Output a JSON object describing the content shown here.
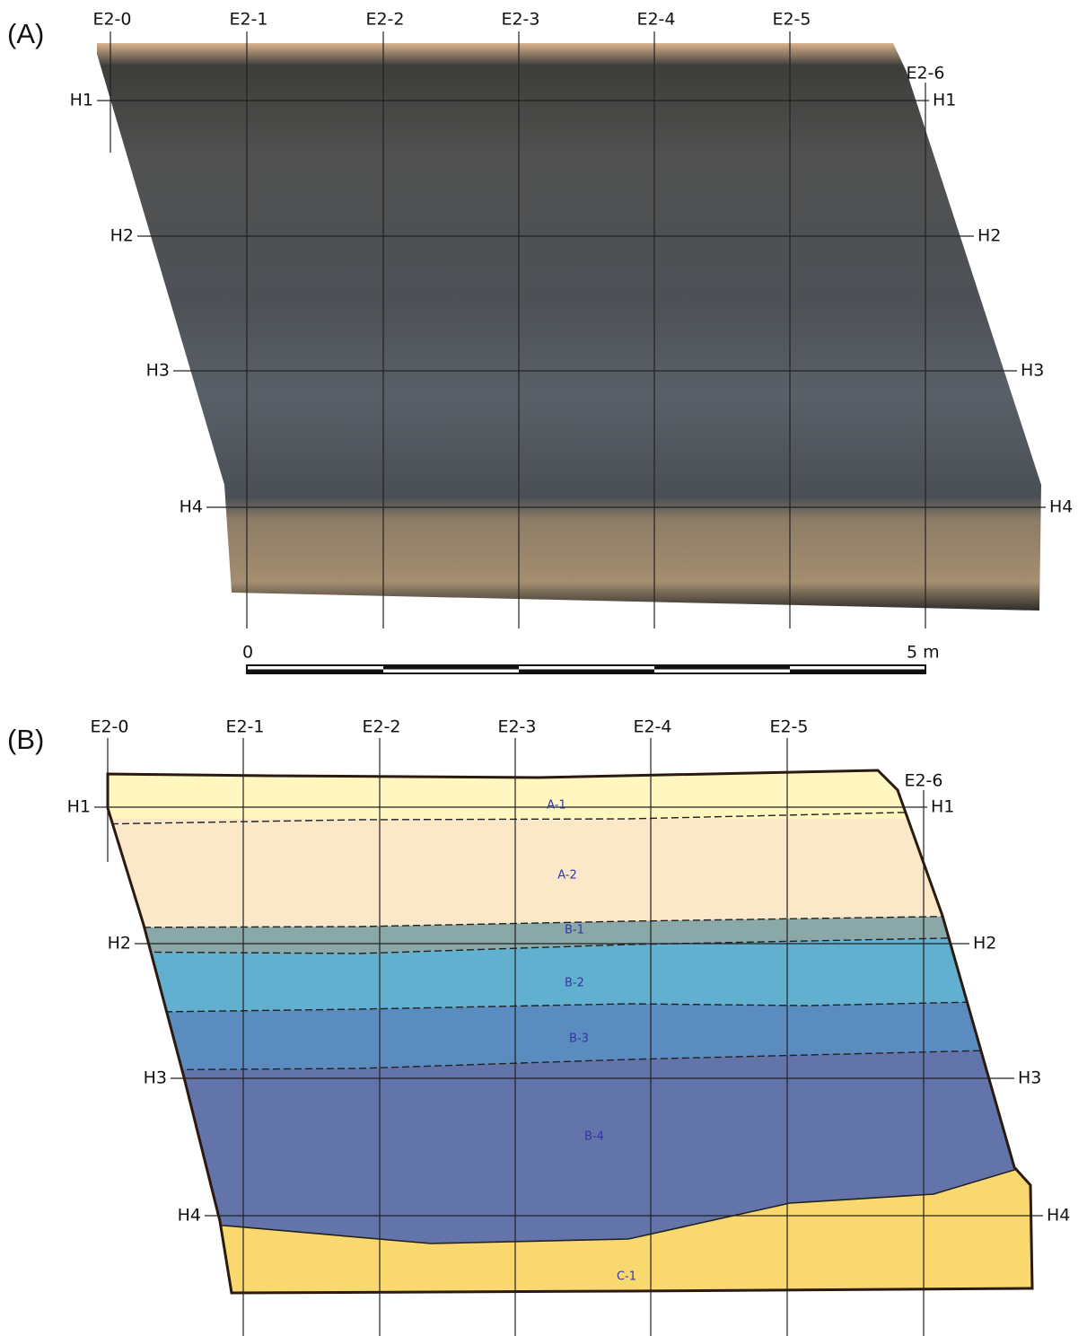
{
  "panels": [
    {
      "label": "(A)",
      "columns": [
        "E2-0",
        "E2-1",
        "E2-2",
        "E2-3",
        "E2-4",
        "E2-5",
        "E2-6"
      ],
      "rows": [
        "H1",
        "H2",
        "H3",
        "H4"
      ],
      "scale": {
        "start": "0",
        "end": "5 m"
      }
    },
    {
      "label": "(B)",
      "columns": [
        "E2-0",
        "E2-1",
        "E2-2",
        "E2-3",
        "E2-4",
        "E2-5",
        "E2-6"
      ],
      "rows": [
        "H1",
        "H2",
        "H3",
        "H4"
      ],
      "layers": [
        "A-1",
        "A-2",
        "B-1",
        "B-2",
        "B-3",
        "B-4",
        "C-1"
      ]
    }
  ]
}
